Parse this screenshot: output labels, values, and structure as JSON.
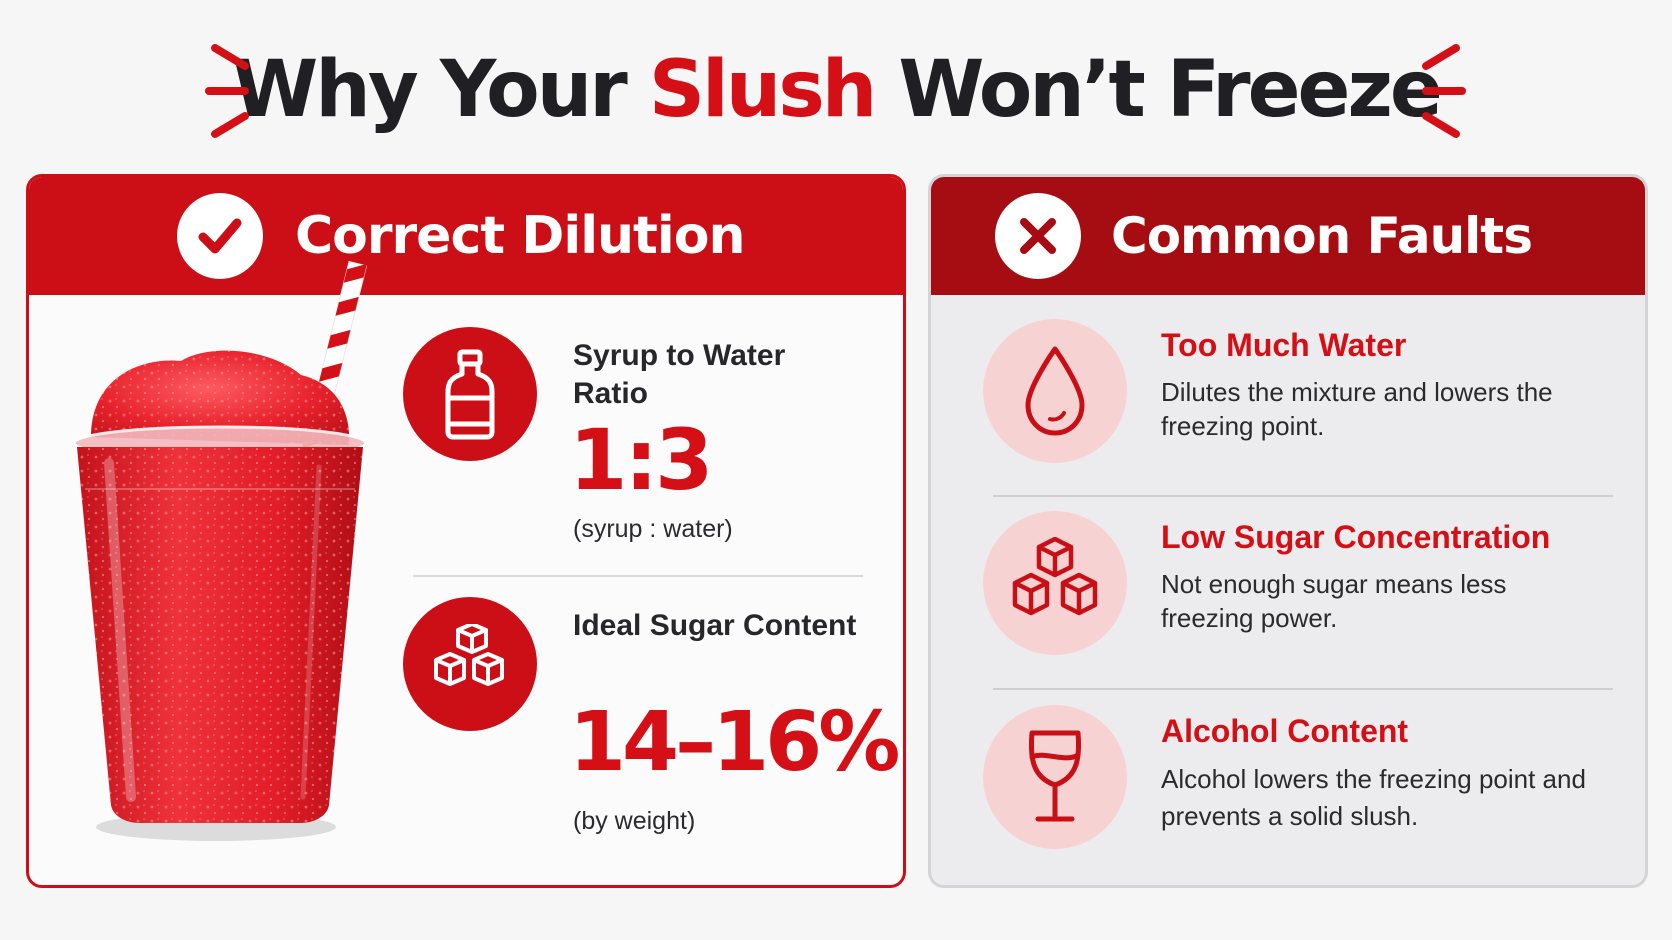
{
  "title": {
    "part1": "Why Your ",
    "accent": "Slush",
    "part2": " Won’t Freeze"
  },
  "colors": {
    "accent": "#d40f16",
    "panel_left_header": "#cc0f16",
    "panel_right_header": "#a50d12",
    "fault_icon_bg": "#f7d2d3"
  },
  "correct_panel": {
    "header_icon": "checkmark-icon",
    "title": "Correct Dilution",
    "specs": [
      {
        "icon": "bottle-icon",
        "label": "Syrup to Water Ratio",
        "value": "1:3",
        "note": "(syrup : water)"
      },
      {
        "icon": "sugar-cubes-icon",
        "label": "Ideal Sugar Content",
        "value": "14–16%",
        "note": "(by weight)"
      }
    ]
  },
  "faults_panel": {
    "header_icon": "x-icon",
    "title": "Common Faults",
    "faults": [
      {
        "icon": "water-drop-icon",
        "title": "Too Much Water",
        "description": "Dilutes the mixture and lowers the freezing point."
      },
      {
        "icon": "sugar-cubes-icon",
        "title": "Low Sugar Concentration",
        "description": "Not enough sugar means less freezing power."
      },
      {
        "icon": "wine-glass-icon",
        "title": "Alcohol Content",
        "description": "Alcohol lowers the freezing point and prevents a solid slush."
      }
    ]
  }
}
